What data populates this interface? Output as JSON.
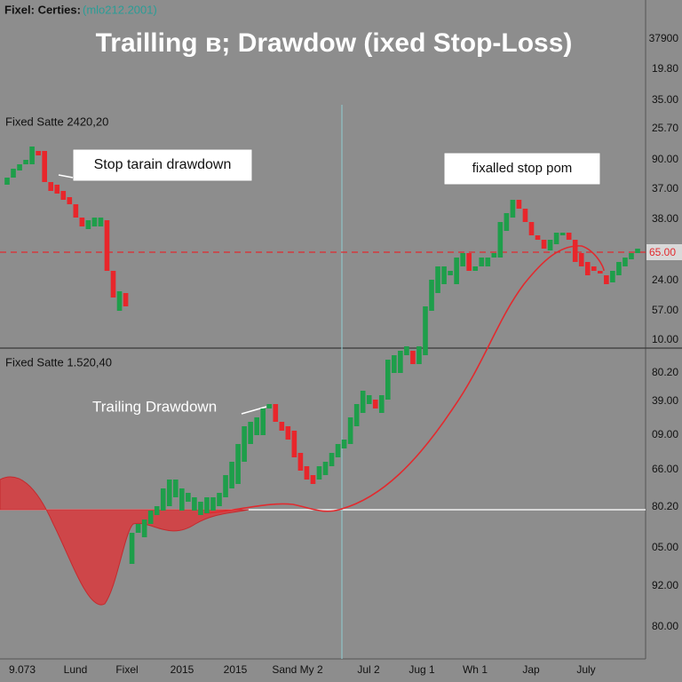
{
  "chart_data": {
    "type": "candlestick",
    "title": "Trailling в; Drawdow (ixed Stop-Loss)",
    "header": "Fixel: Certies:",
    "header_note": "(mlo212.2001)",
    "panel_labels": [
      "Fixed Satte 2420,20",
      "Fixed Satte 1.520,40"
    ],
    "annotations": [
      "Stop tarain drawdown",
      "fixalled stop pom",
      "Trailing Drawdown"
    ],
    "categories": [
      "9.073",
      "Lund",
      "Fixel",
      "2015",
      "2015",
      "Sand My 2",
      "Jul 2",
      "Jug 1",
      "Wh 1",
      "Jap",
      "July"
    ],
    "y_labels": [
      "37900",
      "19.80",
      "35.00",
      "25.70",
      "90.00",
      "37.00",
      "38.00",
      "24.00",
      "57.00",
      "10.00",
      "80.20",
      "39.00",
      "09.00",
      "66.00",
      "80.20",
      "05.00",
      "92.00",
      "80.00"
    ],
    "stop_label": "65.00",
    "stop_level": 484,
    "ylim": [
      0,
      768
    ],
    "up_color": "#1e9e4a",
    "down_color": "#e8262b",
    "open": [
      560,
      568,
      576,
      583,
      583,
      598,
      598,
      563,
      560,
      553,
      546,
      538,
      523,
      510,
      513,
      513,
      520,
      463,
      418,
      438,
      133,
      168,
      163,
      178,
      188,
      193,
      198,
      208,
      193,
      203,
      193,
      188,
      190,
      193,
      198,
      208,
      218,
      223,
      248,
      268,
      278,
      278,
      308,
      313,
      293,
      288,
      283,
      258,
      243,
      233,
      228,
      233,
      243,
      253,
      263,
      268,
      288,
      303,
      313,
      318,
      303,
      318,
      348,
      348,
      368,
      373,
      358,
      368,
      418,
      438,
      448,
      458,
      448,
      468,
      483,
      463,
      468,
      468,
      478,
      478,
      508,
      523,
      543,
      533,
      518,
      503,
      498,
      486,
      493,
      503,
      506,
      498,
      483,
      473,
      468,
      463,
      458,
      450,
      458,
      468,
      476,
      483
    ],
    "close": [
      568,
      578,
      583,
      588,
      603,
      593,
      563,
      553,
      550,
      543,
      538,
      523,
      513,
      520,
      523,
      523,
      463,
      433,
      440,
      423,
      168,
      178,
      183,
      193,
      198,
      218,
      228,
      228,
      218,
      213,
      208,
      203,
      208,
      208,
      213,
      233,
      248,
      268,
      288,
      293,
      298,
      308,
      313,
      293,
      283,
      273,
      253,
      238,
      228,
      223,
      243,
      248,
      258,
      268,
      273,
      298,
      313,
      328,
      323,
      308,
      323,
      363,
      368,
      373,
      378,
      358,
      378,
      423,
      453,
      468,
      468,
      463,
      478,
      483,
      463,
      468,
      478,
      478,
      483,
      518,
      528,
      543,
      533,
      518,
      503,
      498,
      488,
      498,
      506,
      506,
      498,
      473,
      468,
      458,
      463,
      460,
      448,
      463,
      473,
      478,
      483,
      488
    ]
  }
}
